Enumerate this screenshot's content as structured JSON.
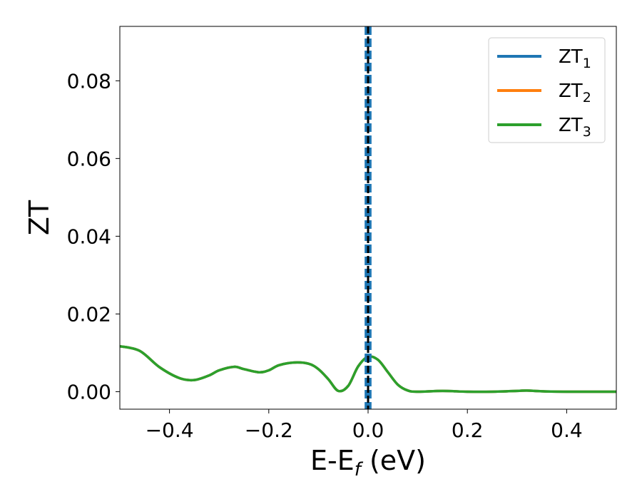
{
  "chart_data": {
    "type": "line",
    "title": "",
    "xlabel": {
      "main": "E-E",
      "sub": "f",
      "unit": " (eV)"
    },
    "ylabel": "ZT",
    "xlim": [
      -0.5,
      0.5
    ],
    "ylim": [
      -0.0045,
      0.094
    ],
    "xticks": [
      -0.4,
      -0.2,
      0.0,
      0.2,
      0.4
    ],
    "xtick_labels": [
      "−0.4",
      "−0.2",
      "0.0",
      "0.2",
      "0.4"
    ],
    "yticks": [
      0.0,
      0.02,
      0.04,
      0.06,
      0.08
    ],
    "ytick_labels": [
      "0.00",
      "0.02",
      "0.04",
      "0.06",
      "0.08"
    ],
    "grid": false,
    "legend_position": "top-right",
    "series": [
      {
        "name": "ZT",
        "sub": "1",
        "color": "#1f77b4",
        "style": "solid",
        "x": [
          -0.5,
          -0.46,
          -0.42,
          -0.38,
          -0.35,
          -0.32,
          -0.3,
          -0.27,
          -0.25,
          -0.22,
          -0.2,
          -0.18,
          -0.15,
          -0.12,
          -0.1,
          -0.08,
          -0.06,
          -0.04,
          -0.02,
          0.0,
          0.02,
          0.04,
          0.06,
          0.08,
          0.1,
          0.15,
          0.2,
          0.25,
          0.3,
          0.32,
          0.35,
          0.4,
          0.45,
          0.5
        ],
        "y": [
          0.0117,
          0.0105,
          0.0063,
          0.0035,
          0.003,
          0.0042,
          0.0055,
          0.0064,
          0.0058,
          0.005,
          0.0055,
          0.0068,
          0.0075,
          0.0072,
          0.0058,
          0.0032,
          0.0002,
          0.0015,
          0.0065,
          0.009,
          0.0082,
          0.005,
          0.0018,
          0.0003,
          0.0,
          0.0002,
          0.0,
          0.0,
          0.0002,
          0.0003,
          0.0001,
          0.0,
          0.0,
          0.0
        ]
      },
      {
        "name": "ZT",
        "sub": "2",
        "color": "#ff7f0e",
        "style": "solid",
        "x": [
          -0.5,
          -0.46,
          -0.42,
          -0.38,
          -0.35,
          -0.32,
          -0.3,
          -0.27,
          -0.25,
          -0.22,
          -0.2,
          -0.18,
          -0.15,
          -0.12,
          -0.1,
          -0.08,
          -0.06,
          -0.04,
          -0.02,
          0.0,
          0.02,
          0.04,
          0.06,
          0.08,
          0.1,
          0.15,
          0.2,
          0.25,
          0.3,
          0.32,
          0.35,
          0.4,
          0.45,
          0.5
        ],
        "y": [
          0.0117,
          0.0105,
          0.0063,
          0.0035,
          0.003,
          0.0042,
          0.0055,
          0.0064,
          0.0058,
          0.005,
          0.0055,
          0.0068,
          0.0075,
          0.0072,
          0.0058,
          0.0032,
          0.0002,
          0.0015,
          0.0065,
          0.009,
          0.0082,
          0.005,
          0.0018,
          0.0003,
          0.0,
          0.0002,
          0.0,
          0.0,
          0.0002,
          0.0003,
          0.0001,
          0.0,
          0.0,
          0.0
        ]
      },
      {
        "name": "ZT",
        "sub": "3",
        "color": "#2ca02c",
        "style": "solid",
        "x": [
          -0.5,
          -0.46,
          -0.42,
          -0.38,
          -0.35,
          -0.32,
          -0.3,
          -0.27,
          -0.25,
          -0.22,
          -0.2,
          -0.18,
          -0.15,
          -0.12,
          -0.1,
          -0.08,
          -0.06,
          -0.04,
          -0.02,
          0.0,
          0.02,
          0.04,
          0.06,
          0.08,
          0.1,
          0.15,
          0.2,
          0.25,
          0.3,
          0.32,
          0.35,
          0.4,
          0.45,
          0.5
        ],
        "y": [
          0.0117,
          0.0105,
          0.0063,
          0.0035,
          0.003,
          0.0042,
          0.0055,
          0.0064,
          0.0058,
          0.005,
          0.0055,
          0.0068,
          0.0075,
          0.0072,
          0.0058,
          0.0032,
          0.0002,
          0.0015,
          0.0065,
          0.009,
          0.0082,
          0.005,
          0.0018,
          0.0003,
          0.0,
          0.0002,
          0.0,
          0.0,
          0.0002,
          0.0003,
          0.0001,
          0.0,
          0.0,
          0.0
        ]
      }
    ],
    "vertical_lines": [
      {
        "x": -0.003,
        "color": "#1f77b4",
        "style": "dashed",
        "role": "band-left"
      },
      {
        "x": 0.003,
        "color": "#1f77b4",
        "style": "dashed",
        "role": "band-right"
      },
      {
        "x": 0.0,
        "color": "#000000",
        "style": "dashed",
        "role": "fermi-level"
      }
    ]
  }
}
